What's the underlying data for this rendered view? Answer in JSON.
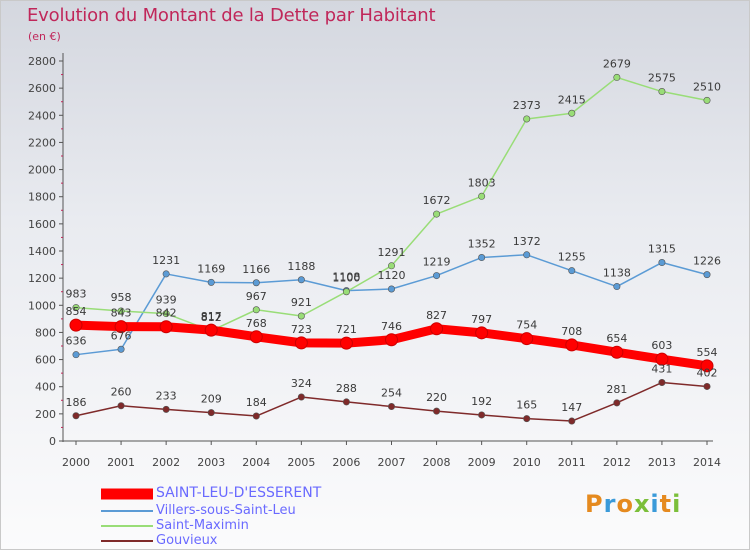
{
  "header": {
    "title": "Evolution du Montant de la Dette par Habitant",
    "subtitle": "(en €)"
  },
  "logo": {
    "text": "Proxiti",
    "colors": [
      "#e58a1f",
      "#3a9ad9",
      "#e58a1f",
      "#7bbf3a",
      "#3a9ad9",
      "#e58a1f",
      "#7bbf3a"
    ]
  },
  "chart_data": {
    "type": "line",
    "title": "Evolution du Montant de la Dette par Habitant",
    "subtitle": "(en €)",
    "xlabel": "",
    "ylabel": "",
    "categories": [
      "2000",
      "2001",
      "2002",
      "2003",
      "2004",
      "2005",
      "2006",
      "2007",
      "2008",
      "2009",
      "2010",
      "2011",
      "2012",
      "2013",
      "2014"
    ],
    "ylim": [
      0,
      2800
    ],
    "yticks": [
      0,
      200,
      400,
      600,
      800,
      1000,
      1200,
      1400,
      1600,
      1800,
      2000,
      2200,
      2400,
      2600,
      2800
    ],
    "grid": false,
    "legend_position": "bottom-left",
    "series": [
      {
        "name": "SAINT-LEU-D'ESSERENT",
        "color": "#ff0000",
        "highlight": true,
        "values": [
          854,
          843,
          842,
          817,
          768,
          723,
          721,
          746,
          827,
          797,
          754,
          708,
          654,
          603,
          554
        ]
      },
      {
        "name": "Villers-sous-Saint-Leu",
        "color": "#5b9bd5",
        "highlight": false,
        "values": [
          636,
          676,
          1231,
          1169,
          1166,
          1188,
          1108,
          1120,
          1219,
          1352,
          1372,
          1255,
          1138,
          1315,
          1226
        ]
      },
      {
        "name": "Saint-Maximin",
        "color": "#99dd77",
        "highlight": false,
        "values": [
          983,
          958,
          939,
          812,
          967,
          921,
          1100,
          1291,
          1672,
          1803,
          2373,
          2415,
          2679,
          2575,
          2510
        ]
      },
      {
        "name": "Gouvieux",
        "color": "#7f2a2a",
        "highlight": false,
        "values": [
          186,
          260,
          233,
          209,
          184,
          324,
          288,
          254,
          220,
          192,
          165,
          147,
          281,
          431,
          402
        ]
      }
    ]
  }
}
